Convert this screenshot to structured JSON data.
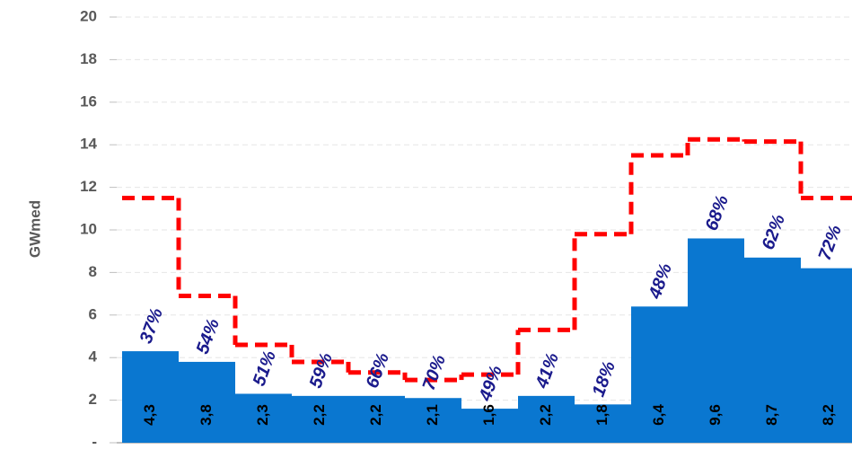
{
  "chart_data": {
    "type": "bar",
    "y_label": "GWmed",
    "categories": [
      null,
      null,
      null,
      null,
      null,
      null,
      null,
      null,
      null,
      null,
      null,
      null,
      null
    ],
    "series": [
      {
        "type": "bar",
        "color": "#0a77d0",
        "values": [
          4.3,
          3.8,
          2.3,
          2.2,
          2.2,
          2.1,
          1.6,
          2.2,
          1.8,
          6.4,
          9.6,
          8.7,
          8.2
        ],
        "value_labels": [
          "4,3",
          "3,8",
          "2,3",
          "2,2",
          "2,2",
          "2,1",
          "1,6",
          "2,2",
          "1,8",
          "6,4",
          "9,6",
          "8,7",
          "8,2"
        ]
      },
      {
        "type": "step",
        "color": "#ff0000",
        "dashed": true,
        "values": [
          11.5,
          6.9,
          4.6,
          3.8,
          3.3,
          2.95,
          3.2,
          5.3,
          9.8,
          13.5,
          14.25,
          14.15,
          11.5
        ]
      }
    ],
    "ratio_labels": [
      "37%",
      "54%",
      "51%",
      "59%",
      "66%",
      "70%",
      "49%",
      "41%",
      "18%",
      "48%",
      "68%",
      "62%",
      "72%"
    ],
    "ylim": [
      0,
      20
    ],
    "yticks": [
      {
        "value": 0,
        "label": "-"
      },
      2,
      4,
      6,
      8,
      10,
      12,
      14,
      16,
      18,
      20
    ],
    "grid": true
  }
}
